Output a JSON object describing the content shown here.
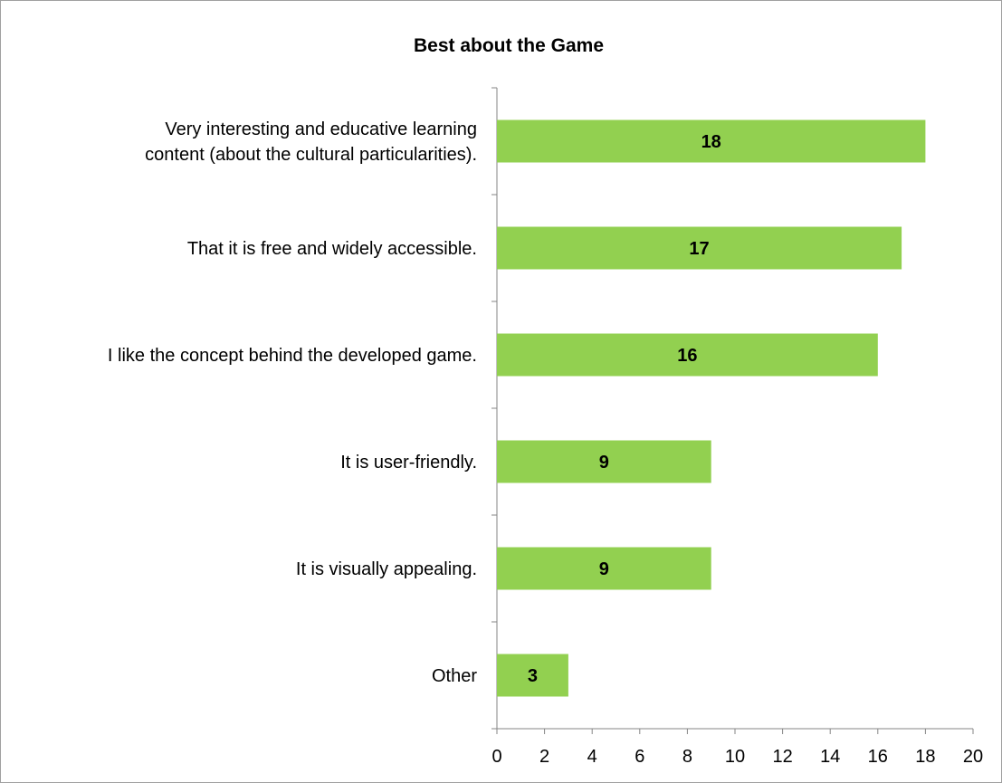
{
  "chart_data": {
    "type": "bar",
    "orientation": "horizontal",
    "title": "Best about the Game",
    "xlabel": "",
    "ylabel": "",
    "categories": [
      [
        "Very interesting and educative learning",
        "content (about the cultural particularities)."
      ],
      [
        "That it is free and widely accessible."
      ],
      [
        "I like the concept behind the developed game."
      ],
      [
        "It is user-friendly."
      ],
      [
        "It is visually appealing."
      ],
      [
        "Other"
      ]
    ],
    "values": [
      18,
      17,
      16,
      9,
      9,
      3
    ],
    "data_labels": [
      "18",
      "17",
      "16",
      "9",
      "9",
      "3"
    ],
    "xlim": [
      0,
      20
    ],
    "x_ticks": [
      "0",
      "2",
      "4",
      "6",
      "8",
      "10",
      "12",
      "14",
      "16",
      "18",
      "20"
    ],
    "grid": false,
    "legend": "none",
    "bar_color": "#92d050"
  }
}
